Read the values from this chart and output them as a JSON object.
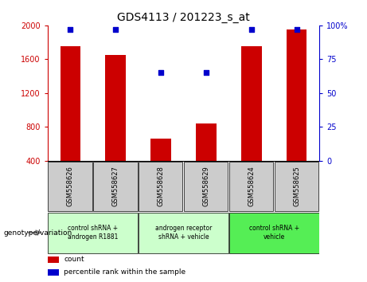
{
  "title": "GDS4113 / 201223_s_at",
  "samples": [
    "GSM558626",
    "GSM558627",
    "GSM558628",
    "GSM558629",
    "GSM558624",
    "GSM558625"
  ],
  "counts": [
    1750,
    1650,
    660,
    840,
    1750,
    1950
  ],
  "percentiles": [
    97,
    97,
    65,
    65,
    97,
    97
  ],
  "group_colors": [
    "#ccffcc",
    "#ccffcc",
    "#66ee66"
  ],
  "group_texts": [
    "control shRNA +\nandrogen R1881",
    "androgen receptor\nshRNA + vehicle",
    "control shRNA +\nvehicle"
  ],
  "group_ranges": [
    [
      0,
      2
    ],
    [
      2,
      4
    ],
    [
      4,
      6
    ]
  ],
  "sample_box_color": "#cccccc",
  "bar_color": "#cc0000",
  "dot_color": "#0000cc",
  "ylim_left": [
    400,
    2000
  ],
  "ylim_right": [
    0,
    100
  ],
  "yticks_left": [
    400,
    800,
    1200,
    1600,
    2000
  ],
  "yticks_right": [
    0,
    25,
    50,
    75,
    100
  ],
  "grid_yticks": [
    800,
    1200,
    1600
  ],
  "legend_count_label": "count",
  "legend_pct_label": "percentile rank within the sample",
  "group_label": "genotype/variation"
}
